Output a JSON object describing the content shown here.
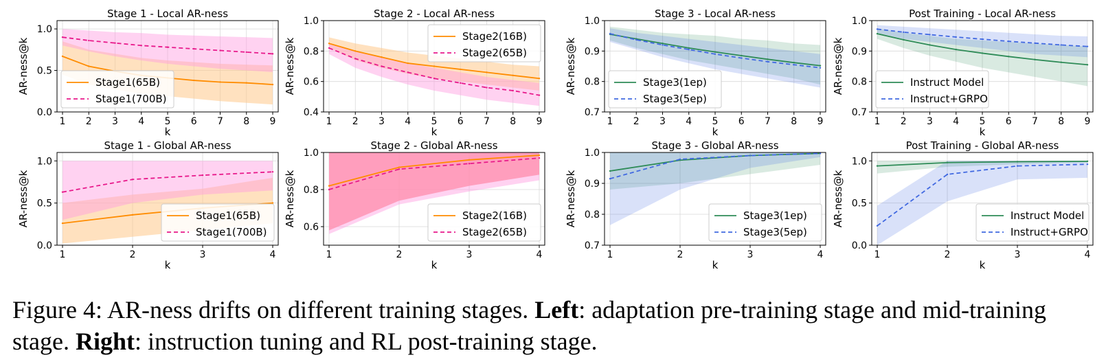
{
  "caption": {
    "label": "Figure 4:",
    "intro": "AR-ness drifts on different training stages.",
    "left_bold": "Left",
    "left_text": ": adaptation pre-training stage and mid-training stage.",
    "right_bold": "Right",
    "right_text": ": instruction tuning and RL post-training stage."
  },
  "colors": {
    "orange": "#ff8c00",
    "pink": "#e8198b",
    "green": "#2e8b57",
    "blue": "#4169e1",
    "red_fill": "#ff8080",
    "pink_fill": "#ff9be0",
    "orange_fill": "#ffc98a"
  },
  "chart_data": [
    {
      "type": "line",
      "title": "Stage 1 - Local AR-ness",
      "xlabel": "k",
      "ylabel": "AR-ness@k",
      "x": [
        1,
        2,
        3,
        4,
        5,
        6,
        7,
        8,
        9
      ],
      "xticks": [
        "1",
        "2",
        "3",
        "4",
        "5",
        "6",
        "7",
        "8",
        "9"
      ],
      "ylim": [
        0,
        1.1
      ],
      "yticks": [
        0,
        0.5,
        1.0
      ],
      "yticklabels": [
        "0.0",
        "0.5",
        "1.0"
      ],
      "grid": true,
      "legend_position": "lower-left",
      "series": [
        {
          "name": "Stage1(65B)",
          "color_key": "orange",
          "dash": false,
          "fill_key": "orange_fill",
          "values": [
            0.67,
            0.55,
            0.49,
            0.44,
            0.41,
            0.38,
            0.36,
            0.35,
            0.33
          ],
          "lower": [
            0.45,
            0.33,
            0.27,
            0.22,
            0.19,
            0.16,
            0.13,
            0.11,
            0.09
          ],
          "upper": [
            0.85,
            0.75,
            0.7,
            0.65,
            0.62,
            0.6,
            0.58,
            0.57,
            0.56
          ]
        },
        {
          "name": "Stage1(700B)",
          "color_key": "pink",
          "dash": true,
          "fill_key": "pink_fill",
          "values": [
            0.9,
            0.86,
            0.83,
            0.8,
            0.78,
            0.76,
            0.74,
            0.72,
            0.7
          ],
          "lower": [
            0.8,
            0.73,
            0.67,
            0.62,
            0.58,
            0.55,
            0.52,
            0.5,
            0.48
          ],
          "upper": [
            1.0,
            0.98,
            0.96,
            0.95,
            0.93,
            0.92,
            0.91,
            0.9,
            0.89
          ]
        }
      ]
    },
    {
      "type": "line",
      "title": "Stage 2 - Local AR-ness",
      "xlabel": "k",
      "ylabel": "AR-ness@k",
      "x": [
        1,
        2,
        3,
        4,
        5,
        6,
        7,
        8,
        9
      ],
      "xticks": [
        "1",
        "2",
        "3",
        "4",
        "5",
        "6",
        "7",
        "8",
        "9"
      ],
      "ylim": [
        0.4,
        1.0
      ],
      "yticks": [
        0.4,
        0.6,
        0.8,
        1.0
      ],
      "yticklabels": [
        "0.4",
        "0.6",
        "0.8",
        "1.0"
      ],
      "grid": true,
      "legend_position": "upper-right",
      "series": [
        {
          "name": "Stage2(16B)",
          "color_key": "orange",
          "dash": false,
          "fill_key": "orange_fill",
          "values": [
            0.85,
            0.8,
            0.76,
            0.72,
            0.7,
            0.68,
            0.66,
            0.64,
            0.62
          ],
          "lower": [
            0.82,
            0.74,
            0.69,
            0.65,
            0.62,
            0.6,
            0.58,
            0.56,
            0.54
          ],
          "upper": [
            0.89,
            0.85,
            0.82,
            0.79,
            0.77,
            0.75,
            0.73,
            0.71,
            0.7
          ]
        },
        {
          "name": "Stage2(65B)",
          "color_key": "pink",
          "dash": true,
          "fill_key": "pink_fill",
          "values": [
            0.82,
            0.75,
            0.7,
            0.66,
            0.62,
            0.59,
            0.56,
            0.54,
            0.51
          ],
          "lower": [
            0.78,
            0.69,
            0.63,
            0.58,
            0.54,
            0.51,
            0.48,
            0.46,
            0.44
          ],
          "upper": [
            0.85,
            0.8,
            0.76,
            0.72,
            0.69,
            0.66,
            0.63,
            0.61,
            0.59
          ]
        }
      ]
    },
    {
      "type": "line",
      "title": "Stage 3 - Local AR-ness",
      "xlabel": "k",
      "ylabel": "AR-ness@k",
      "x": [
        1,
        2,
        3,
        4,
        5,
        6,
        7,
        8,
        9
      ],
      "xticks": [
        "1",
        "2",
        "3",
        "4",
        "5",
        "6",
        "7",
        "8",
        "9"
      ],
      "ylim": [
        0.7,
        1.0
      ],
      "yticks": [
        0.7,
        0.8,
        0.9,
        1.0
      ],
      "yticklabels": [
        "0.7",
        "0.8",
        "0.9",
        "1.0"
      ],
      "grid": true,
      "legend_position": "lower-left",
      "series": [
        {
          "name": "Stage3(1ep)",
          "color_key": "green",
          "dash": false,
          "fill_key": "green",
          "values": [
            0.955,
            0.94,
            0.925,
            0.91,
            0.897,
            0.885,
            0.873,
            0.862,
            0.852
          ],
          "lower": [
            0.935,
            0.91,
            0.89,
            0.87,
            0.855,
            0.84,
            0.825,
            0.81,
            0.79
          ],
          "upper": [
            0.98,
            0.97,
            0.96,
            0.955,
            0.95,
            0.94,
            0.935,
            0.925,
            0.92
          ]
        },
        {
          "name": "Stage3(5ep)",
          "color_key": "blue",
          "dash": true,
          "fill_key": "blue",
          "values": [
            0.957,
            0.937,
            0.92,
            0.905,
            0.89,
            0.877,
            0.865,
            0.855,
            0.845
          ],
          "lower": [
            0.93,
            0.905,
            0.88,
            0.86,
            0.84,
            0.825,
            0.81,
            0.795,
            0.78
          ],
          "upper": [
            0.975,
            0.96,
            0.95,
            0.94,
            0.93,
            0.92,
            0.91,
            0.9,
            0.89
          ]
        }
      ]
    },
    {
      "type": "line",
      "title": "Post Training - Local AR-ness",
      "xlabel": "k",
      "ylabel": "AR-ness@k",
      "x": [
        1,
        2,
        3,
        4,
        5,
        6,
        7,
        8,
        9
      ],
      "xticks": [
        "1",
        "2",
        "3",
        "4",
        "5",
        "6",
        "7",
        "8",
        "9"
      ],
      "ylim": [
        0.7,
        1.0
      ],
      "yticks": [
        0.7,
        0.8,
        0.9,
        1.0
      ],
      "yticklabels": [
        "0.7",
        "0.8",
        "0.9",
        "1.0"
      ],
      "grid": true,
      "legend_position": "lower-left",
      "series": [
        {
          "name": "Instruct Model",
          "color_key": "green",
          "dash": false,
          "fill_key": "green",
          "values": [
            0.957,
            0.937,
            0.92,
            0.905,
            0.893,
            0.882,
            0.872,
            0.863,
            0.855
          ],
          "lower": [
            0.94,
            0.91,
            0.885,
            0.865,
            0.845,
            0.83,
            0.815,
            0.8,
            0.785
          ],
          "upper": [
            0.975,
            0.96,
            0.95,
            0.94,
            0.935,
            0.93,
            0.925,
            0.92,
            0.915
          ]
        },
        {
          "name": "Instruct+GRPO",
          "color_key": "blue",
          "dash": true,
          "fill_key": "blue",
          "values": [
            0.972,
            0.962,
            0.954,
            0.946,
            0.939,
            0.932,
            0.926,
            0.92,
            0.915
          ],
          "lower": [
            0.96,
            0.94,
            0.93,
            0.92,
            0.91,
            0.9,
            0.89,
            0.885,
            0.88
          ],
          "upper": [
            0.985,
            0.98,
            0.975,
            0.97,
            0.965,
            0.96,
            0.955,
            0.95,
            0.948
          ]
        }
      ]
    },
    {
      "type": "line",
      "title": "Stage 1 - Global AR-ness",
      "xlabel": "k",
      "ylabel": "AR-ness@k",
      "x": [
        1,
        2,
        3,
        4
      ],
      "xticks": [
        "1",
        "2",
        "3",
        "4"
      ],
      "ylim": [
        0,
        1.1
      ],
      "yticks": [
        0,
        0.5,
        1.0
      ],
      "yticklabels": [
        "0.0",
        "0.5",
        "1.0"
      ],
      "grid": true,
      "legend_position": "lower-right",
      "series": [
        {
          "name": "Stage1(65B)",
          "color_key": "orange",
          "dash": false,
          "fill_key": "orange_fill",
          "values": [
            0.26,
            0.36,
            0.44,
            0.5
          ],
          "lower": [
            0.02,
            0.1,
            0.18,
            0.26
          ],
          "upper": [
            0.5,
            0.6,
            0.67,
            0.8
          ]
        },
        {
          "name": "Stage1(700B)",
          "color_key": "pink",
          "dash": true,
          "fill_key": "pink_fill",
          "values": [
            0.63,
            0.78,
            0.83,
            0.87
          ],
          "lower": [
            0.3,
            0.5,
            0.6,
            0.65
          ],
          "upper": [
            1.0,
            1.0,
            1.0,
            1.0
          ]
        }
      ]
    },
    {
      "type": "line",
      "title": "Stage 2 - Global AR-ness",
      "xlabel": "k",
      "ylabel": "AR-ness@k",
      "x": [
        1,
        2,
        3,
        4
      ],
      "xticks": [
        "1",
        "2",
        "3",
        "4"
      ],
      "ylim": [
        0.5,
        1.0
      ],
      "yticks": [
        0.6,
        0.8,
        1.0
      ],
      "yticklabels": [
        "0.6",
        "0.8",
        "1.0"
      ],
      "grid": true,
      "legend_position": "lower-right",
      "series": [
        {
          "name": "Stage2(16B)",
          "color_key": "orange",
          "dash": false,
          "fill_key": "red_fill",
          "values": [
            0.82,
            0.92,
            0.96,
            0.985
          ],
          "lower": [
            0.58,
            0.74,
            0.82,
            0.88
          ],
          "upper": [
            1.0,
            1.0,
            1.0,
            1.0
          ]
        },
        {
          "name": "Stage2(65B)",
          "color_key": "pink",
          "dash": true,
          "fill_key": "pink_fill",
          "values": [
            0.8,
            0.91,
            0.94,
            0.97
          ],
          "lower": [
            0.56,
            0.72,
            0.79,
            0.85
          ],
          "upper": [
            1.0,
            1.0,
            1.0,
            1.0
          ]
        }
      ]
    },
    {
      "type": "line",
      "title": "Stage 3 - Global AR-ness",
      "xlabel": "k",
      "ylabel": "AR-ness@k",
      "x": [
        1,
        2,
        3,
        4
      ],
      "xticks": [
        "1",
        "2",
        "3",
        "4"
      ],
      "ylim": [
        0.7,
        1.0
      ],
      "yticks": [
        0.7,
        0.8,
        0.9,
        1.0
      ],
      "yticklabels": [
        "0.7",
        "0.8",
        "0.9",
        "1.0"
      ],
      "grid": true,
      "legend_position": "lower-right",
      "series": [
        {
          "name": "Stage3(1ep)",
          "color_key": "green",
          "dash": false,
          "fill_key": "green",
          "values": [
            0.94,
            0.975,
            0.99,
            0.997
          ],
          "lower": [
            0.88,
            0.9,
            0.93,
            0.96
          ],
          "upper": [
            1.0,
            1.0,
            1.0,
            1.0
          ]
        },
        {
          "name": "Stage3(5ep)",
          "color_key": "blue",
          "dash": true,
          "fill_key": "blue",
          "values": [
            0.915,
            0.978,
            0.99,
            0.997
          ],
          "lower": [
            0.765,
            0.88,
            0.95,
            0.985
          ],
          "upper": [
            1.0,
            1.0,
            1.0,
            1.0
          ]
        }
      ]
    },
    {
      "type": "line",
      "title": "Post Training - Global AR-ness",
      "xlabel": "k",
      "ylabel": "AR-ness@k",
      "x": [
        1,
        2,
        3,
        4
      ],
      "xticks": [
        "1",
        "2",
        "3",
        "4"
      ],
      "ylim": [
        0,
        1.1
      ],
      "yticks": [
        0,
        0.5,
        1.0
      ],
      "yticklabels": [
        "0.0",
        "0.5",
        "1.0"
      ],
      "grid": true,
      "legend_position": "lower-right",
      "series": [
        {
          "name": "Instruct Model",
          "color_key": "green",
          "dash": false,
          "fill_key": "green",
          "values": [
            0.94,
            0.98,
            0.99,
            0.995
          ],
          "lower": [
            0.85,
            0.93,
            0.96,
            0.98
          ],
          "upper": [
            1.0,
            1.0,
            1.0,
            1.0
          ]
        },
        {
          "name": "Instruct+GRPO",
          "color_key": "blue",
          "dash": true,
          "fill_key": "blue",
          "values": [
            0.23,
            0.84,
            0.94,
            0.96
          ],
          "lower": [
            0.0,
            0.52,
            0.78,
            0.8
          ],
          "upper": [
            0.47,
            1.0,
            1.0,
            1.0
          ]
        }
      ]
    }
  ]
}
